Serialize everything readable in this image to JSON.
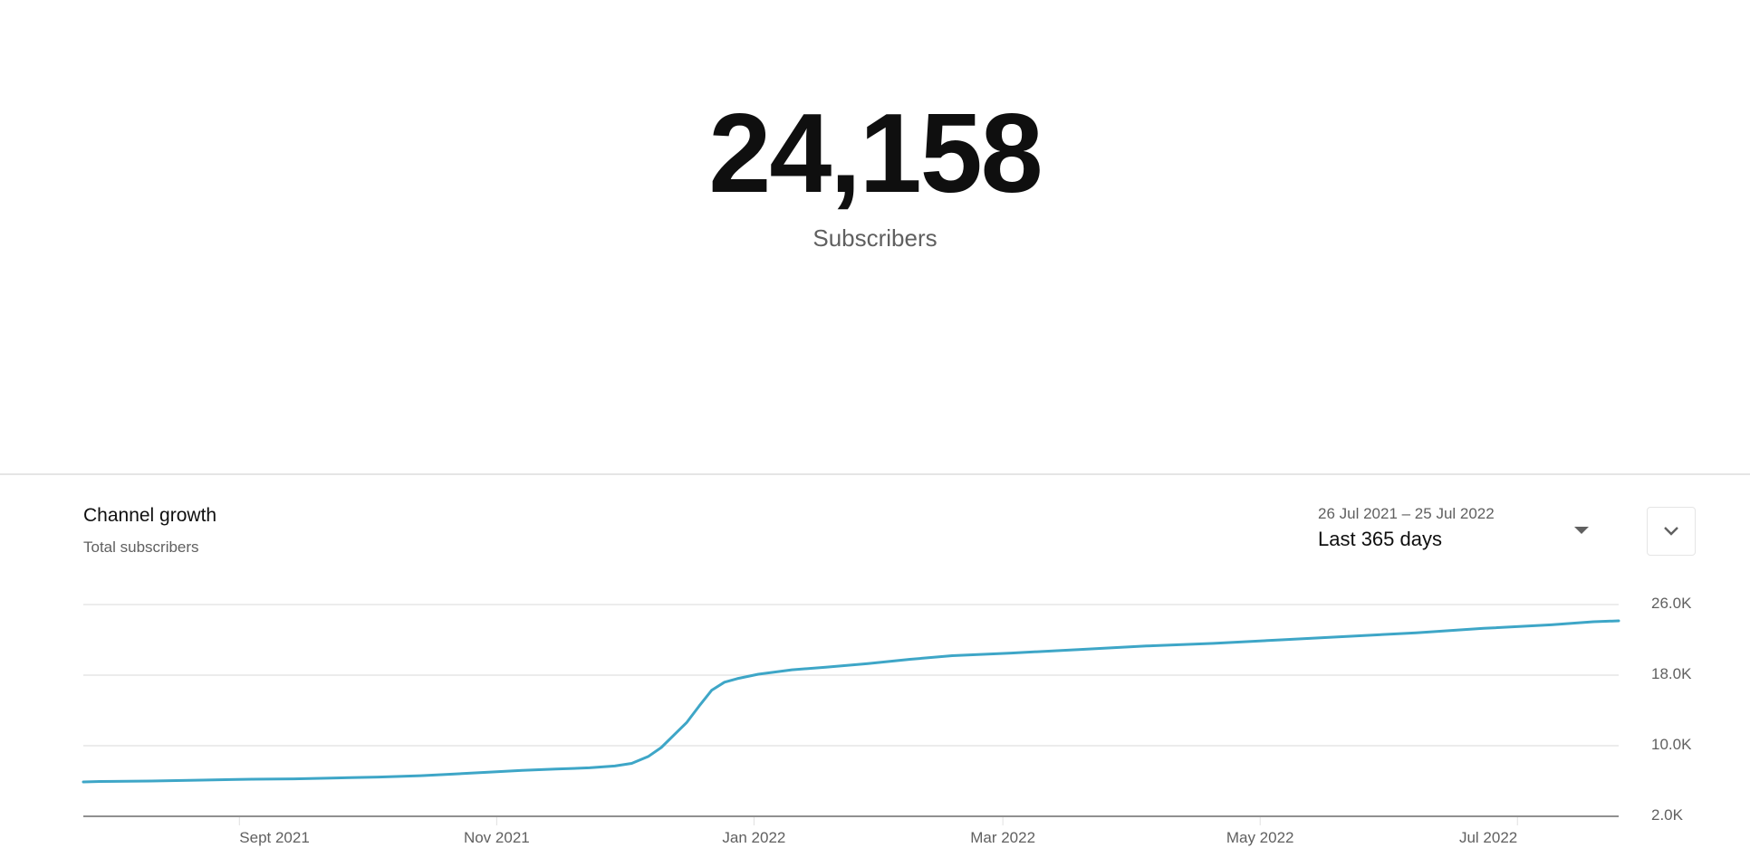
{
  "summary": {
    "value": "24,158",
    "label": "Subscribers"
  },
  "card": {
    "title": "Channel growth",
    "subtitle": "Total subscribers",
    "date_range": {
      "dates": "26 Jul 2021 – 25 Jul 2022",
      "label": "Last 365 days",
      "caret_icon": "dropdown-caret-icon"
    },
    "collapse_icon": "chevron-down-icon"
  },
  "colors": {
    "line": "#3ea6c7",
    "grid": "#e5e5e5",
    "axis": "#909090"
  },
  "chart_data": {
    "type": "line",
    "title": "Channel growth",
    "subtitle": "Total subscribers",
    "xlabel": "",
    "ylabel": "",
    "x_range": [
      "26 Jul 2021",
      "25 Jul 2022"
    ],
    "ylim": [
      2000,
      26000
    ],
    "y_ticks": [
      {
        "value": 26000,
        "label": "26.0K"
      },
      {
        "value": 18000,
        "label": "18.0K"
      },
      {
        "value": 10000,
        "label": "10.0K"
      },
      {
        "value": 2000,
        "label": "2.0K"
      }
    ],
    "x_ticks": [
      {
        "day": 37,
        "label": "Sept 2021",
        "align": "left"
      },
      {
        "day": 98,
        "label": "Nov 2021",
        "align": "center"
      },
      {
        "day": 159,
        "label": "Jan 2022",
        "align": "center"
      },
      {
        "day": 218,
        "label": "Mar 2022",
        "align": "center"
      },
      {
        "day": 279,
        "label": "May 2022",
        "align": "center"
      },
      {
        "day": 340,
        "label": "Jul 2022",
        "align": "right"
      }
    ],
    "grid": true,
    "legend": "none",
    "series": [
      {
        "name": "Total subscribers",
        "x_unit": "days since 26 Jul 2021",
        "points": [
          [
            0,
            5900
          ],
          [
            4,
            5950
          ],
          [
            16,
            6000
          ],
          [
            28,
            6100
          ],
          [
            40,
            6200
          ],
          [
            50,
            6250
          ],
          [
            60,
            6350
          ],
          [
            70,
            6450
          ],
          [
            80,
            6600
          ],
          [
            88,
            6800
          ],
          [
            96,
            7000
          ],
          [
            104,
            7200
          ],
          [
            112,
            7350
          ],
          [
            120,
            7500
          ],
          [
            126,
            7700
          ],
          [
            130,
            8000
          ],
          [
            134,
            8800
          ],
          [
            137,
            9800
          ],
          [
            140,
            11200
          ],
          [
            143,
            12600
          ],
          [
            146,
            14500
          ],
          [
            149,
            16300
          ],
          [
            152,
            17200
          ],
          [
            155,
            17600
          ],
          [
            160,
            18100
          ],
          [
            168,
            18600
          ],
          [
            176,
            18900
          ],
          [
            186,
            19300
          ],
          [
            196,
            19800
          ],
          [
            206,
            20200
          ],
          [
            220,
            20500
          ],
          [
            236,
            20900
          ],
          [
            252,
            21300
          ],
          [
            268,
            21600
          ],
          [
            284,
            22000
          ],
          [
            300,
            22400
          ],
          [
            316,
            22800
          ],
          [
            332,
            23300
          ],
          [
            348,
            23700
          ],
          [
            358,
            24050
          ],
          [
            364,
            24158
          ]
        ]
      }
    ]
  }
}
